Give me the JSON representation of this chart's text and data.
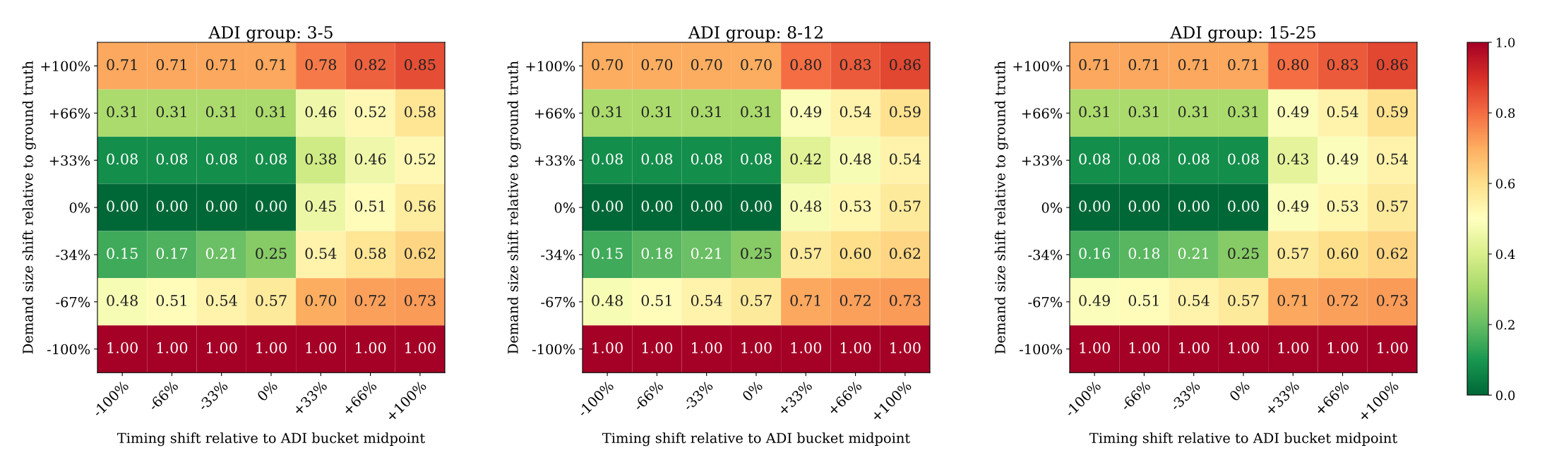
{
  "chart_data": [
    {
      "type": "heatmap",
      "title": "ADI group: 3-5",
      "xlabel": "Timing shift relative to ADI bucket midpoint",
      "ylabel": "Demand size shift relative to ground truth",
      "categories": [
        "-100%",
        "-66%",
        "-33%",
        "0%",
        "+33%",
        "+66%",
        "+100%"
      ],
      "y_categories": [
        "+100%",
        "+66%",
        "+33%",
        "0%",
        "-34%",
        "-67%",
        "-100%"
      ],
      "cells": [
        [
          0.71,
          0.71,
          0.71,
          0.71,
          0.78,
          0.82,
          0.85
        ],
        [
          0.31,
          0.31,
          0.31,
          0.31,
          0.46,
          0.52,
          0.58
        ],
        [
          0.08,
          0.08,
          0.08,
          0.08,
          0.38,
          0.46,
          0.52
        ],
        [
          0.0,
          0.0,
          0.0,
          0.0,
          0.45,
          0.51,
          0.56
        ],
        [
          0.15,
          0.17,
          0.21,
          0.25,
          0.54,
          0.58,
          0.62
        ],
        [
          0.48,
          0.51,
          0.54,
          0.57,
          0.7,
          0.72,
          0.73
        ],
        [
          1.0,
          1.0,
          1.0,
          1.0,
          1.0,
          1.0,
          1.0
        ]
      ],
      "cell_labels": [
        [
          "0.71",
          "0.71",
          "0.71",
          "0.71",
          "0.78",
          "0.82",
          "0.85"
        ],
        [
          "0.31",
          "0.31",
          "0.31",
          "0.31",
          "0.46",
          "0.52",
          "0.58"
        ],
        [
          "0.08",
          "0.08",
          "0.08",
          "0.08",
          "0.38",
          "0.46",
          "0.52"
        ],
        [
          "0.00",
          "0.00",
          "0.00",
          "0.00",
          "0.45",
          "0.51",
          "0.56"
        ],
        [
          "0.15",
          "0.17",
          "0.21",
          "0.25",
          "0.54",
          "0.58",
          "0.62"
        ],
        [
          "0.48",
          "0.51",
          "0.54",
          "0.57",
          "0.70",
          "0.72",
          "0.73"
        ],
        [
          "1.00",
          "1.00",
          "1.00",
          "1.00",
          "1.00",
          "1.00",
          "1.00"
        ]
      ]
    },
    {
      "type": "heatmap",
      "title": "ADI group: 8-12",
      "xlabel": "Timing shift relative to ADI bucket midpoint",
      "ylabel": "Demand size shift relative to ground truth",
      "categories": [
        "-100%",
        "-66%",
        "-33%",
        "0%",
        "+33%",
        "+66%",
        "+100%"
      ],
      "y_categories": [
        "+100%",
        "+66%",
        "+33%",
        "0%",
        "-34%",
        "-67%",
        "-100%"
      ],
      "cells": [
        [
          0.7,
          0.7,
          0.7,
          0.7,
          0.8,
          0.83,
          0.86
        ],
        [
          0.31,
          0.31,
          0.31,
          0.31,
          0.49,
          0.54,
          0.59
        ],
        [
          0.08,
          0.08,
          0.08,
          0.08,
          0.42,
          0.48,
          0.54
        ],
        [
          0.0,
          0.0,
          0.0,
          0.0,
          0.48,
          0.53,
          0.57
        ],
        [
          0.15,
          0.18,
          0.21,
          0.25,
          0.57,
          0.6,
          0.62
        ],
        [
          0.48,
          0.51,
          0.54,
          0.57,
          0.71,
          0.72,
          0.73
        ],
        [
          1.0,
          1.0,
          1.0,
          1.0,
          1.0,
          1.0,
          1.0
        ]
      ],
      "cell_labels": [
        [
          "0.70",
          "0.70",
          "0.70",
          "0.70",
          "0.80",
          "0.83",
          "0.86"
        ],
        [
          "0.31",
          "0.31",
          "0.31",
          "0.31",
          "0.49",
          "0.54",
          "0.59"
        ],
        [
          "0.08",
          "0.08",
          "0.08",
          "0.08",
          "0.42",
          "0.48",
          "0.54"
        ],
        [
          "0.00",
          "0.00",
          "0.00",
          "0.00",
          "0.48",
          "0.53",
          "0.57"
        ],
        [
          "0.15",
          "0.18",
          "0.21",
          "0.25",
          "0.57",
          "0.60",
          "0.62"
        ],
        [
          "0.48",
          "0.51",
          "0.54",
          "0.57",
          "0.71",
          "0.72",
          "0.73"
        ],
        [
          "1.00",
          "1.00",
          "1.00",
          "1.00",
          "1.00",
          "1.00",
          "1.00"
        ]
      ]
    },
    {
      "type": "heatmap",
      "title": "ADI group: 15-25",
      "xlabel": "Timing shift relative to ADI bucket midpoint",
      "ylabel": "Demand size shift relative to ground truth",
      "categories": [
        "-100%",
        "-66%",
        "-33%",
        "0%",
        "+33%",
        "+66%",
        "+100%"
      ],
      "y_categories": [
        "+100%",
        "+66%",
        "+33%",
        "0%",
        "-34%",
        "-67%",
        "-100%"
      ],
      "cells": [
        [
          0.71,
          0.71,
          0.71,
          0.71,
          0.8,
          0.83,
          0.86
        ],
        [
          0.31,
          0.31,
          0.31,
          0.31,
          0.49,
          0.54,
          0.59
        ],
        [
          0.08,
          0.08,
          0.08,
          0.08,
          0.43,
          0.49,
          0.54
        ],
        [
          0.0,
          0.0,
          0.0,
          0.0,
          0.49,
          0.53,
          0.57
        ],
        [
          0.16,
          0.18,
          0.21,
          0.25,
          0.57,
          0.6,
          0.62
        ],
        [
          0.49,
          0.51,
          0.54,
          0.57,
          0.71,
          0.72,
          0.73
        ],
        [
          1.0,
          1.0,
          1.0,
          1.0,
          1.0,
          1.0,
          1.0
        ]
      ],
      "cell_labels": [
        [
          "0.71",
          "0.71",
          "0.71",
          "0.71",
          "0.80",
          "0.83",
          "0.86"
        ],
        [
          "0.31",
          "0.31",
          "0.31",
          "0.31",
          "0.49",
          "0.54",
          "0.59"
        ],
        [
          "0.08",
          "0.08",
          "0.08",
          "0.08",
          "0.43",
          "0.49",
          "0.54"
        ],
        [
          "0.00",
          "0.00",
          "0.00",
          "0.00",
          "0.49",
          "0.53",
          "0.57"
        ],
        [
          "0.16",
          "0.18",
          "0.21",
          "0.25",
          "0.57",
          "0.60",
          "0.62"
        ],
        [
          "0.49",
          "0.51",
          "0.54",
          "0.57",
          "0.71",
          "0.72",
          "0.73"
        ],
        [
          "1.00",
          "1.00",
          "1.00",
          "1.00",
          "1.00",
          "1.00",
          "1.00"
        ]
      ],
      "clim": [
        0,
        1
      ],
      "cticks": [
        {
          "value": 0,
          "label": "0.0"
        },
        0.2,
        0.4,
        0.6,
        0.8,
        {
          "value": 1,
          "label": "1.0"
        }
      ]
    }
  ]
}
